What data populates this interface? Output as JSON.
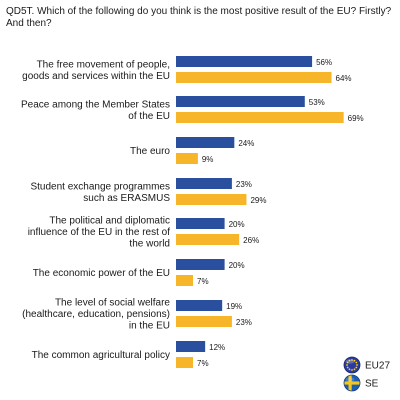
{
  "chart_data": {
    "type": "bar",
    "orientation": "horizontal",
    "title": "QD5T. Which of the following do you think is the most positive result of the EU? Firstly? And then?",
    "categories": [
      [
        "The free movement of people,",
        "goods and services within the EU"
      ],
      [
        "Peace among the Member States",
        "of the EU"
      ],
      [
        "The euro"
      ],
      [
        "Student exchange programmes",
        "such as ERASMUS"
      ],
      [
        "The political and diplomatic",
        "influence of the EU in the rest of",
        "the world"
      ],
      [
        "The economic power of the EU"
      ],
      [
        "The level of social welfare",
        "(healthcare, education, pensions)",
        "in the EU"
      ],
      [
        "The common agricultural policy"
      ]
    ],
    "series": [
      {
        "name": "EU27",
        "color": "#2a4f9e",
        "values": [
          56,
          53,
          24,
          23,
          20,
          20,
          19,
          12
        ]
      },
      {
        "name": "SE",
        "color": "#f7b529",
        "values": [
          64,
          69,
          9,
          29,
          26,
          7,
          23,
          7
        ]
      }
    ],
    "value_suffix": "%",
    "xlim": [
      0,
      69
    ],
    "grid": false,
    "legend_position": "bottom-right",
    "legend_icons": [
      "eu-flag-icon",
      "sweden-flag-icon"
    ]
  }
}
